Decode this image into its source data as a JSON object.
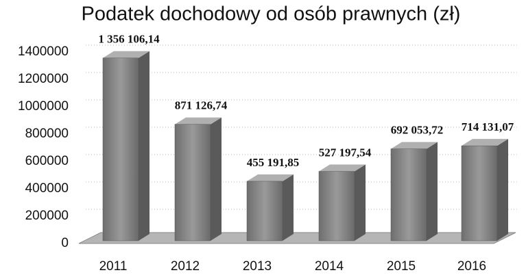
{
  "chart_data": {
    "type": "bar3d",
    "title": "Podatek dochodowy od osób prawnych (zł)",
    "categories": [
      "2011",
      "2012",
      "2013",
      "2014",
      "2015",
      "2016"
    ],
    "values": [
      1356106.14,
      871126.74,
      455191.85,
      527197.54,
      692053.72,
      714131.07
    ],
    "value_labels": [
      "1 356 106,14",
      "871 126,74",
      "455 191,85",
      "527 197,54",
      "692 053,72",
      "714 131,07"
    ],
    "color": "#8a8a8a",
    "ylim": [
      0,
      1400000
    ],
    "yticks": [
      0,
      200000,
      400000,
      600000,
      800000,
      1000000,
      1200000,
      1400000
    ],
    "grid": true
  }
}
